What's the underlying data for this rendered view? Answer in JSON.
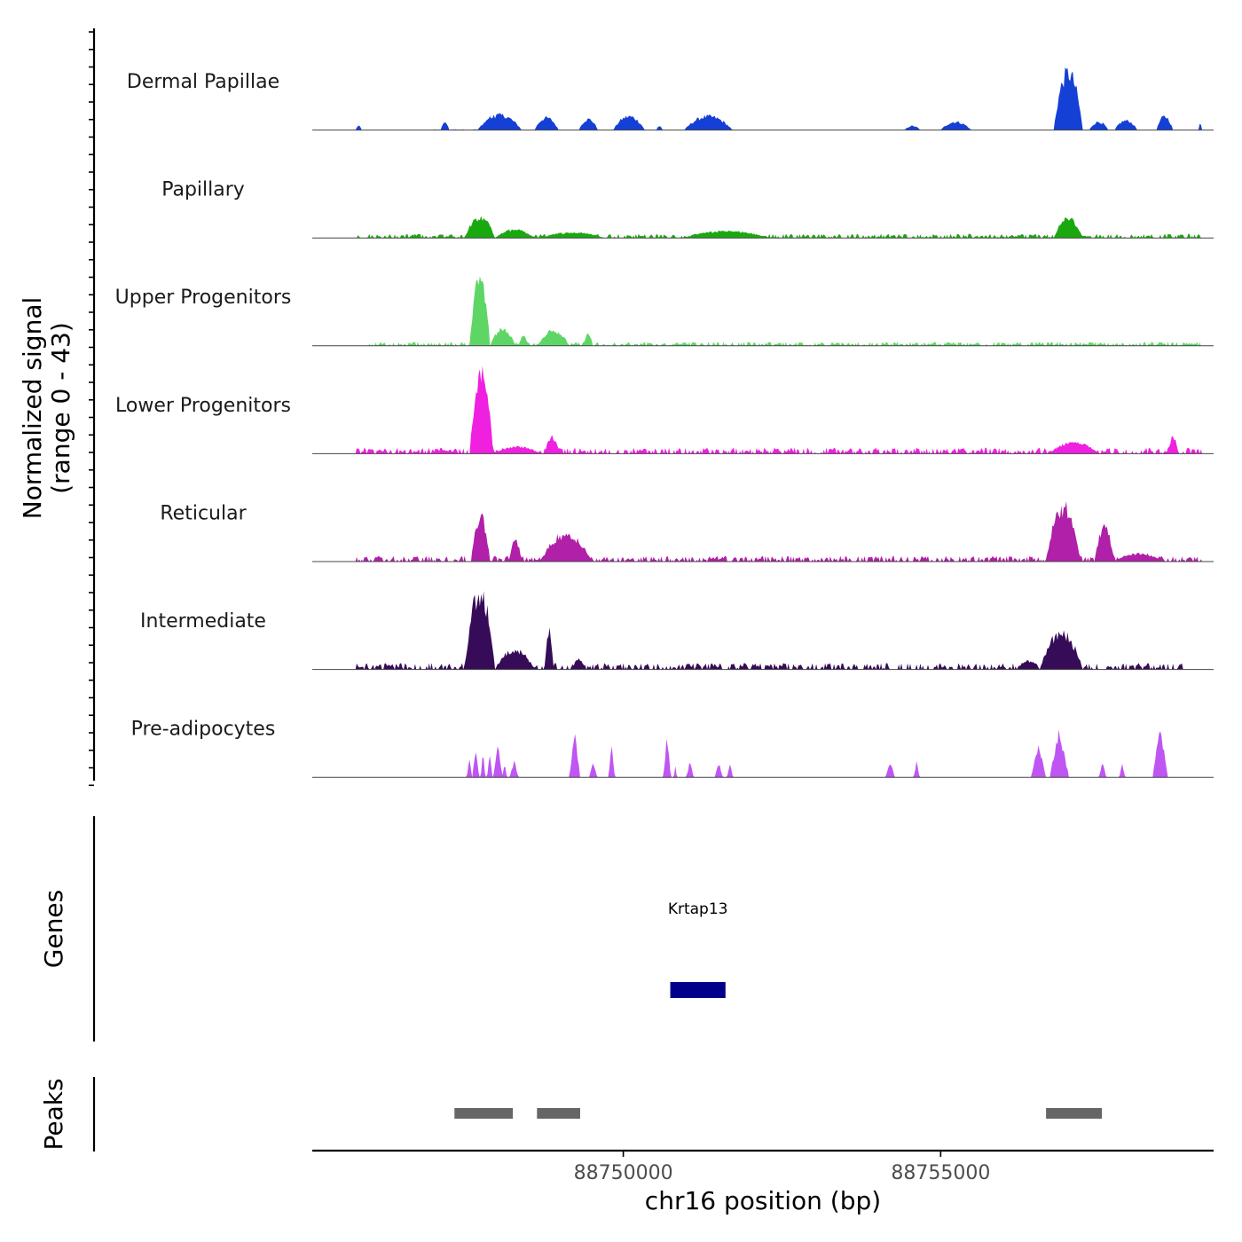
{
  "chart_data": {
    "type": "area",
    "title": "",
    "ylabel": [
      "Normalized signal",
      "(range 0 - 43)"
    ],
    "yrange": [
      0,
      43
    ],
    "xlabel": "chr16 position (bp)",
    "xlim": [
      88745100,
      88759300
    ],
    "xticks": [
      88750000,
      88755000
    ],
    "xtick_labels": [
      "88750000",
      "88755000"
    ],
    "tracks": [
      {
        "name": "Dermal Papillae",
        "color": "#1540d6",
        "peaks": [
          [
            88745780,
            88745880,
            3
          ],
          [
            88747120,
            88747260,
            6
          ],
          [
            88747700,
            88748400,
            11
          ],
          [
            88748600,
            88748980,
            9
          ],
          [
            88749300,
            88749600,
            8
          ],
          [
            88749840,
            88750340,
            10
          ],
          [
            88750520,
            88750620,
            3
          ],
          [
            88750960,
            88751720,
            10
          ],
          [
            88754430,
            88754680,
            3
          ],
          [
            88755000,
            88755480,
            6
          ],
          [
            88756780,
            88757240,
            42
          ],
          [
            88757340,
            88757640,
            6
          ],
          [
            88757740,
            88758100,
            7
          ],
          [
            88758400,
            88758660,
            10
          ],
          [
            88759060,
            88759120,
            5
          ]
        ],
        "noise": [
          88747000,
          88748000,
          0.4
        ]
      },
      {
        "name": "Papillary",
        "color": "#1aa80f",
        "peaks": [
          [
            88747500,
            88747980,
            15
          ],
          [
            88747980,
            88748600,
            6
          ],
          [
            88748700,
            88749700,
            4
          ],
          [
            88750950,
            88752300,
            5
          ],
          [
            88756780,
            88757240,
            14
          ]
        ],
        "noise": [
          88745800,
          88759100,
          2.2
        ]
      },
      {
        "name": "Upper Progenitors",
        "color": "#5ed666",
        "peaks": [
          [
            88747580,
            88747900,
            52
          ],
          [
            88747900,
            88748300,
            12
          ],
          [
            88748350,
            88748500,
            7
          ],
          [
            88748650,
            88749150,
            11
          ],
          [
            88749380,
            88749520,
            9
          ]
        ],
        "noise": [
          88746000,
          88759100,
          2.0
        ]
      },
      {
        "name": "Lower Progenitors",
        "color": "#f020e0",
        "peaks": [
          [
            88747580,
            88747950,
            58
          ],
          [
            88747950,
            88748700,
            5
          ],
          [
            88748760,
            88749000,
            12
          ],
          [
            88756700,
            88757500,
            8
          ],
          [
            88758580,
            88758740,
            12
          ]
        ],
        "noise": [
          88745800,
          88759100,
          3.2
        ]
      },
      {
        "name": "Reticular",
        "color": "#b020a8",
        "peaks": [
          [
            88747600,
            88747900,
            32
          ],
          [
            88748200,
            88748400,
            15
          ],
          [
            88748700,
            88749500,
            20
          ],
          [
            88756660,
            88757200,
            40
          ],
          [
            88757420,
            88757740,
            24
          ],
          [
            88757740,
            88758500,
            6
          ]
        ],
        "noise": [
          88745800,
          88759100,
          3.0
        ]
      },
      {
        "name": "Intermediate",
        "color": "#360c58",
        "peaks": [
          [
            88747500,
            88747980,
            56
          ],
          [
            88747980,
            88748600,
            14
          ],
          [
            88748760,
            88748900,
            30
          ],
          [
            88749200,
            88749400,
            8
          ],
          [
            88756560,
            88757240,
            26
          ],
          [
            88756200,
            88756560,
            6
          ]
        ],
        "noise": [
          88745800,
          88758800,
          3.4
        ]
      },
      {
        "name": "Pre-adipocytes",
        "color": "#bf55f2",
        "peaks": [
          [
            88747540,
            88747610,
            14
          ],
          [
            88747630,
            88747720,
            22
          ],
          [
            88747760,
            88747820,
            22
          ],
          [
            88747860,
            88747930,
            18
          ],
          [
            88747960,
            88748090,
            22
          ],
          [
            88748100,
            88748160,
            12
          ],
          [
            88748220,
            88748340,
            12
          ],
          [
            88749160,
            88749310,
            32
          ],
          [
            88749470,
            88749580,
            11
          ],
          [
            88749770,
            88749860,
            22
          ],
          [
            88750640,
            88750740,
            32
          ],
          [
            88750800,
            88750840,
            10
          ],
          [
            88751000,
            88751100,
            11
          ],
          [
            88751450,
            88751560,
            11
          ],
          [
            88751640,
            88751720,
            11
          ],
          [
            88754140,
            88754270,
            11
          ],
          [
            88754580,
            88754660,
            11
          ],
          [
            88756440,
            88756640,
            24
          ],
          [
            88756730,
            88757000,
            34
          ],
          [
            88757500,
            88757600,
            11
          ],
          [
            88757820,
            88757900,
            11
          ],
          [
            88758350,
            88758560,
            38
          ]
        ],
        "noise": null
      }
    ],
    "genes_panel_label": "Genes",
    "genes": [
      {
        "name": "Krtap13",
        "start": 88750740,
        "end": 88751610,
        "color": "#00008b"
      }
    ],
    "peaks_panel_label": "Peaks",
    "peak_regions": [
      {
        "start": 88747340,
        "end": 88748260
      },
      {
        "start": 88748640,
        "end": 88749320
      },
      {
        "start": 88756660,
        "end": 88757540
      }
    ],
    "peak_color": "#666666"
  }
}
